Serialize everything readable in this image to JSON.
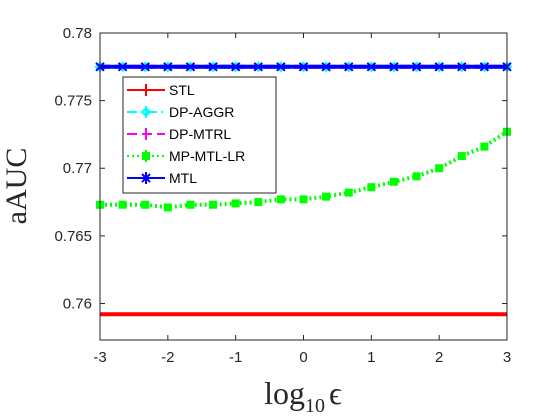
{
  "chart_data": {
    "type": "line",
    "ylabel": "aAUC",
    "xlabel": [
      "log",
      "10",
      "ϵ"
    ],
    "x": [
      -3,
      -2.6667,
      -2.3333,
      -2,
      -1.6667,
      -1.3333,
      -1,
      -0.6667,
      -0.3333,
      0,
      0.3333,
      0.6667,
      1,
      1.3333,
      1.6667,
      2,
      2.3333,
      2.6667,
      3
    ],
    "series": [
      {
        "name": "STL",
        "color": "#ff0000",
        "style": "solid",
        "marker": "none",
        "values": [
          0.7592,
          0.7592,
          0.7592,
          0.7592,
          0.7592,
          0.7592,
          0.7592,
          0.7592,
          0.7592,
          0.7592,
          0.7592,
          0.7592,
          0.7592,
          0.7592,
          0.7592,
          0.7592,
          0.7592,
          0.7592,
          0.7592
        ]
      },
      {
        "name": "DP-AGGR",
        "color": "#00ffff",
        "style": "dashdot",
        "marker": "diamond",
        "values": [
          0.7775,
          0.7775,
          0.7775,
          0.7775,
          0.7775,
          0.7775,
          0.7775,
          0.7775,
          0.7775,
          0.7775,
          0.7775,
          0.7775,
          0.7775,
          0.7775,
          0.7775,
          0.7775,
          0.7775,
          0.7775,
          0.7775
        ]
      },
      {
        "name": "DP-MTRL",
        "color": "#ff00ff",
        "style": "dashed",
        "marker": "none",
        "values": [
          0.7775,
          0.7775,
          0.7775,
          0.7775,
          0.7775,
          0.7775,
          0.7775,
          0.7775,
          0.7775,
          0.7775,
          0.7775,
          0.7775,
          0.7775,
          0.7775,
          0.7775,
          0.7775,
          0.7775,
          0.7775,
          0.7775
        ]
      },
      {
        "name": "MP-MTL-LR",
        "color": "#00ff00",
        "style": "dotted",
        "marker": "square",
        "values": [
          0.7673,
          0.7673,
          0.7673,
          0.7671,
          0.7673,
          0.7673,
          0.7674,
          0.7675,
          0.7677,
          0.7677,
          0.7679,
          0.7682,
          0.7686,
          0.769,
          0.7694,
          0.77,
          0.7709,
          0.7716,
          0.7727
        ]
      },
      {
        "name": "MTL",
        "color": "#0000ff",
        "style": "solid",
        "marker": "x",
        "values": [
          0.7775,
          0.7775,
          0.7775,
          0.7775,
          0.7775,
          0.7775,
          0.7775,
          0.7775,
          0.7775,
          0.7775,
          0.7775,
          0.7775,
          0.7775,
          0.7775,
          0.7775,
          0.7775,
          0.7775,
          0.7775,
          0.7775
        ]
      }
    ],
    "xlim": [
      -3,
      3
    ],
    "xticks": [
      -3,
      -2,
      -1,
      0,
      1,
      2,
      3
    ],
    "ylim": [
      0.7573,
      0.78
    ],
    "yticks": [
      0.76,
      0.765,
      0.77,
      0.775,
      0.78
    ],
    "legend": "upper left"
  }
}
